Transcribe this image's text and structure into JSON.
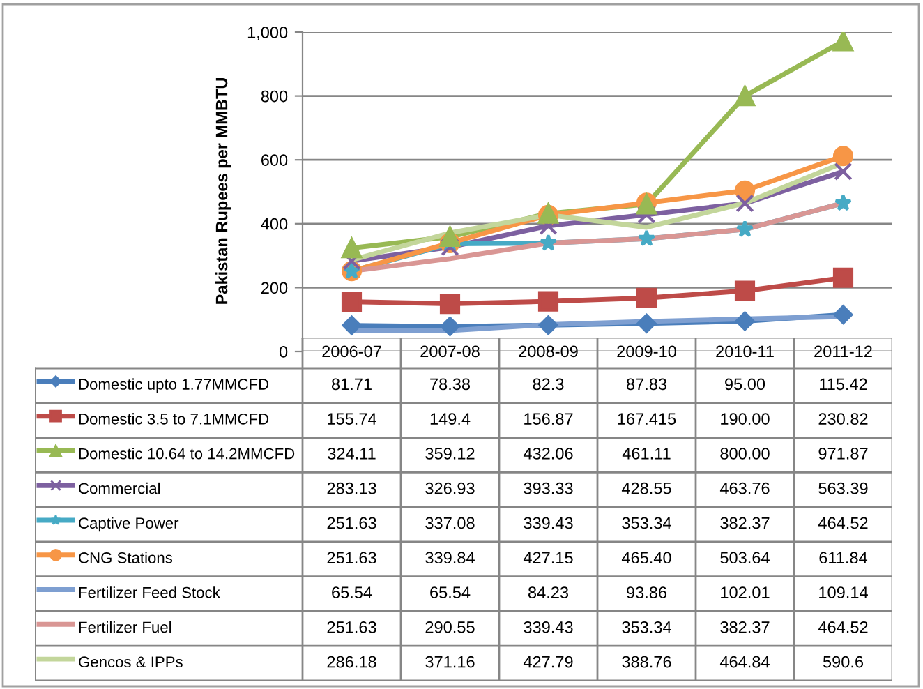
{
  "chart_data": {
    "type": "line",
    "ylabel": "Pakistan Rupees per MMBTU",
    "categories": [
      "2006-07",
      "2007-08",
      "2008-09",
      "2009-10",
      "2010-11",
      "2011-12"
    ],
    "ylim": [
      0,
      1000
    ],
    "yticks": [
      0,
      200,
      400,
      600,
      800,
      {
        "value": 1000,
        "label": "1,000"
      }
    ],
    "grid": "y",
    "legend": "bottom",
    "series": [
      {
        "name": "Domestic upto 1.77MMCFD",
        "color": "#4a7ebb",
        "marker": "diamond",
        "values": [
          81.71,
          78.38,
          82.3,
          87.83,
          95.0,
          115.42
        ],
        "value_labels": [
          "81.71",
          "78.38",
          "82.3",
          "87.83",
          "95.00",
          "115.42"
        ]
      },
      {
        "name": "Domestic 3.5 to 7.1MMCFD",
        "color": "#be4b48",
        "marker": "square",
        "values": [
          155.74,
          149.4,
          156.87,
          167.415,
          190.0,
          230.82
        ],
        "value_labels": [
          "155.74",
          "149.4",
          "156.87",
          "167.415",
          "190.00",
          "230.82"
        ]
      },
      {
        "name": "Domestic 10.64 to 14.2MMCFD",
        "color": "#98b954",
        "marker": "triangle",
        "values": [
          324.11,
          359.12,
          432.06,
          461.11,
          800.0,
          971.87
        ],
        "value_labels": [
          "324.11",
          "359.12",
          "432.06",
          "461.11",
          "800.00",
          "971.87"
        ]
      },
      {
        "name": "Commercial",
        "color": "#7d60a0",
        "marker": "cross",
        "values": [
          283.13,
          326.93,
          393.33,
          428.55,
          463.76,
          563.39
        ],
        "value_labels": [
          "283.13",
          "326.93",
          "393.33",
          "428.55",
          "463.76",
          "563.39"
        ]
      },
      {
        "name": "Captive Power",
        "color": "#46aac5",
        "marker": "star",
        "values": [
          251.63,
          337.08,
          339.43,
          353.34,
          382.37,
          464.52
        ],
        "value_labels": [
          "251.63",
          "337.08",
          "339.43",
          "353.34",
          "382.37",
          "464.52"
        ]
      },
      {
        "name": "CNG Stations",
        "color": "#f79646",
        "marker": "circle",
        "values": [
          251.63,
          339.84,
          427.15,
          465.4,
          503.64,
          611.84
        ],
        "value_labels": [
          "251.63",
          "339.84",
          "427.15",
          "465.40",
          "503.64",
          "611.84"
        ]
      },
      {
        "name": "Fertilizer Feed Stock",
        "color": "#7e9fd1",
        "marker": "none",
        "values": [
          65.54,
          65.54,
          84.23,
          93.86,
          102.01,
          109.14
        ],
        "value_labels": [
          "65.54",
          "65.54",
          "84.23",
          "93.86",
          "102.01",
          "109.14"
        ]
      },
      {
        "name": "Fertilizer Fuel",
        "color": "#d99694",
        "marker": "none",
        "values": [
          251.63,
          290.55,
          339.43,
          353.34,
          382.37,
          464.52
        ],
        "value_labels": [
          "251.63",
          "290.55",
          "339.43",
          "353.34",
          "382.37",
          "464.52"
        ]
      },
      {
        "name": "Gencos & IPPs",
        "color": "#c3d69b",
        "marker": "none",
        "values": [
          286.18,
          371.16,
          427.79,
          388.76,
          464.84,
          590.6
        ],
        "value_labels": [
          "286.18",
          "371.16",
          "427.79",
          "388.76",
          "464.84",
          "590.6"
        ]
      }
    ]
  }
}
